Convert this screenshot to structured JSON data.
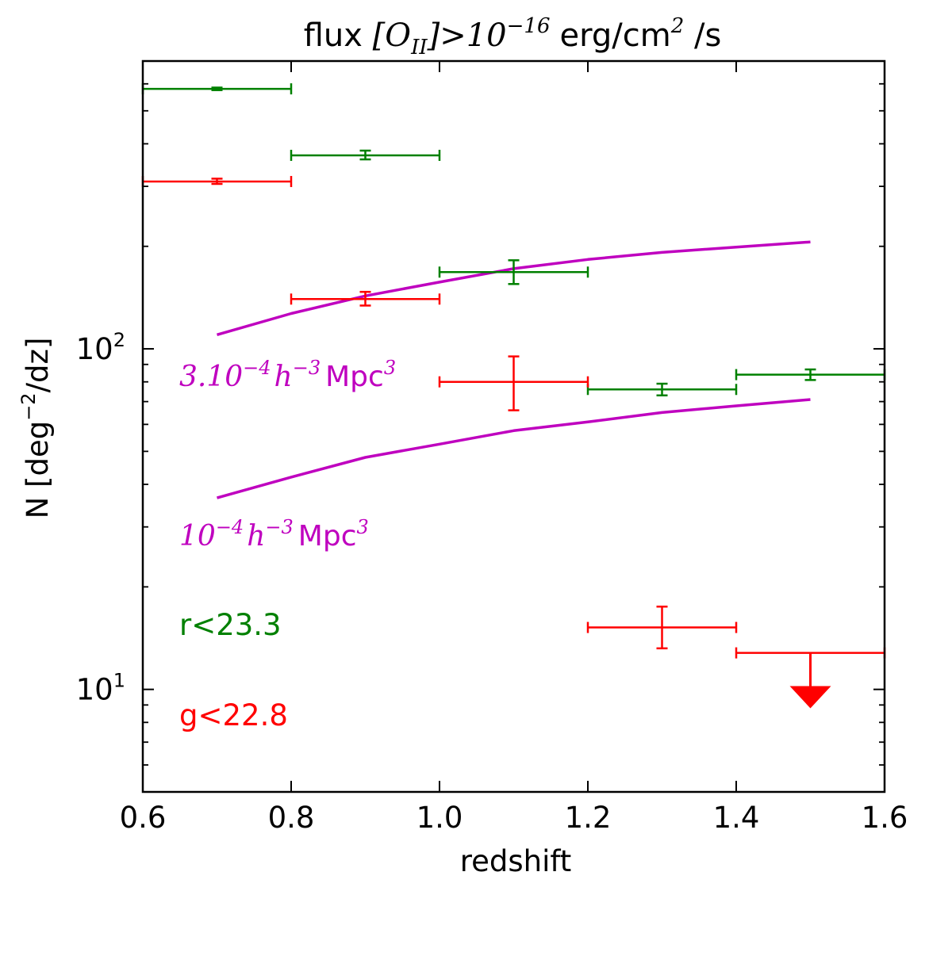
{
  "chart_data": {
    "type": "scatter",
    "title": {
      "prefix": "flux ",
      "bracket_open": "[",
      "species": "O",
      "species_sub": "II",
      "bracket_close": "]",
      "gt": ">",
      "base": "10",
      "exp": "−16",
      "units_a": "erg/cm",
      "units_exp": "2",
      "units_b": " /s"
    },
    "xlabel": "redshift",
    "ylabel": {
      "prefix": "N [deg",
      "exp": "−2",
      "suffix": "/dz]"
    },
    "xlim": [
      0.6,
      1.6
    ],
    "ylim": [
      5,
      700
    ],
    "yscale": "log",
    "x_ticks": [
      {
        "value": 0.6,
        "label": "0.6"
      },
      {
        "value": 0.8,
        "label": "0.8"
      },
      {
        "value": 1.0,
        "label": "1.0"
      },
      {
        "value": 1.2,
        "label": "1.2"
      },
      {
        "value": 1.4,
        "label": "1.4"
      },
      {
        "value": 1.6,
        "label": "1.6"
      }
    ],
    "y_major_ticks": [
      {
        "value": 10,
        "base": "10",
        "exp": "1"
      },
      {
        "value": 100,
        "base": "10",
        "exp": "2"
      }
    ],
    "y_minor_ticks": [
      6,
      7,
      8,
      9,
      20,
      30,
      40,
      50,
      60,
      70,
      80,
      90,
      200,
      300,
      400,
      500,
      600
    ],
    "series": [
      {
        "name": "r<23.3",
        "color": "#008000",
        "points": [
          {
            "x": 0.7,
            "xerr": 0.1,
            "y": 580,
            "ylo": 575,
            "yhi": 585
          },
          {
            "x": 0.9,
            "xerr": 0.1,
            "y": 370,
            "ylo": 360,
            "yhi": 382
          },
          {
            "x": 1.1,
            "xerr": 0.1,
            "y": 168,
            "ylo": 155,
            "yhi": 182
          },
          {
            "x": 1.3,
            "xerr": 0.1,
            "y": 76,
            "ylo": 73,
            "yhi": 79
          },
          {
            "x": 1.5,
            "xerr": 0.1,
            "y": 84,
            "ylo": 81,
            "yhi": 87
          }
        ]
      },
      {
        "name": "g<22.8",
        "color": "#ff0000",
        "points": [
          {
            "x": 0.7,
            "xerr": 0.1,
            "y": 310,
            "ylo": 305,
            "yhi": 316
          },
          {
            "x": 0.9,
            "xerr": 0.1,
            "y": 140,
            "ylo": 134,
            "yhi": 147
          },
          {
            "x": 1.1,
            "xerr": 0.1,
            "y": 80,
            "ylo": 66,
            "yhi": 95
          },
          {
            "x": 1.3,
            "xerr": 0.1,
            "y": 15.2,
            "ylo": 13.2,
            "yhi": 17.5
          },
          {
            "x": 1.5,
            "xerr": 0.1,
            "y": 12.8,
            "upper_limit": true,
            "arrow_to": 8.8
          }
        ]
      }
    ],
    "model_curves": [
      {
        "name": "3.10^-4 h^-3 Mpc^3",
        "color": "#bf00bf",
        "x": [
          0.7,
          0.8,
          0.9,
          1.0,
          1.1,
          1.2,
          1.3,
          1.4,
          1.5
        ],
        "y": [
          110,
          127,
          143,
          157,
          172,
          183,
          192,
          199,
          206
        ]
      },
      {
        "name": "10^-4 h^-3 Mpc^3",
        "color": "#bf00bf",
        "x": [
          0.7,
          0.8,
          0.9,
          1.0,
          1.1,
          1.2,
          1.3,
          1.4,
          1.5
        ],
        "y": [
          36.5,
          42,
          48,
          52.5,
          57.5,
          61,
          65,
          68,
          71
        ]
      }
    ],
    "annotations": {
      "curve1": {
        "base": "3.10",
        "exp": "−4",
        "h": "h",
        "hexp": "−3",
        "unit": "Mpc",
        "uexp": "3"
      },
      "curve2": {
        "base": "10",
        "exp": "−4",
        "h": "h",
        "hexp": "−3",
        "unit": "Mpc",
        "uexp": "3"
      },
      "r_label": "r<23.3",
      "g_label": "g<22.8"
    },
    "colors": {
      "green": "#008000",
      "red": "#ff0000",
      "magenta": "#bf00bf"
    }
  }
}
